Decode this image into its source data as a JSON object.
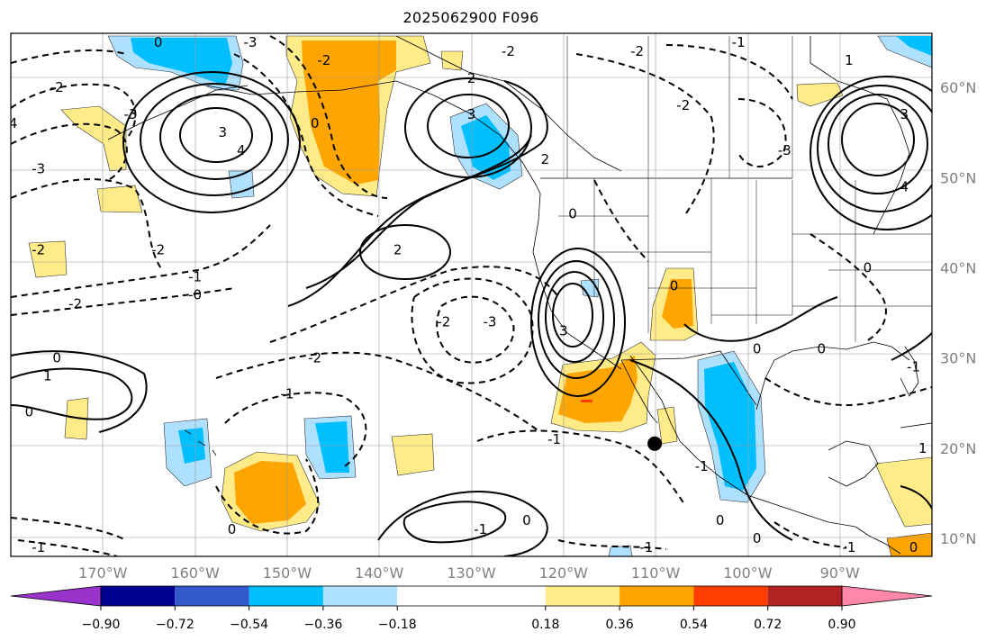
{
  "title": "2025062900 F096",
  "map": {
    "projection": "PlateCarree",
    "lon_range": [
      -180,
      -80
    ],
    "lat_range": [
      8,
      66
    ],
    "grid": true,
    "lon_ticks": [
      {
        "value": -170,
        "label": "170°W"
      },
      {
        "value": -160,
        "label": "160°W"
      },
      {
        "value": -150,
        "label": "150°W"
      },
      {
        "value": -140,
        "label": "140°W"
      },
      {
        "value": -130,
        "label": "130°W"
      },
      {
        "value": -120,
        "label": "120°W"
      },
      {
        "value": -110,
        "label": "110°W"
      },
      {
        "value": -100,
        "label": "100°W"
      },
      {
        "value": -90,
        "label": "90°W"
      }
    ],
    "lat_ticks": [
      {
        "value": 60,
        "label": "60°N"
      },
      {
        "value": 50,
        "label": "50°N"
      },
      {
        "value": 40,
        "label": "40°N"
      },
      {
        "value": 30,
        "label": "30°N"
      },
      {
        "value": 20,
        "label": "20°N"
      },
      {
        "value": 10,
        "label": "10°N"
      }
    ],
    "marker": {
      "name": "storm-center",
      "lon": -110.1,
      "lat": 20.5,
      "color": "#000000"
    }
  },
  "colorbar": {
    "extend": "both",
    "colors": [
      "#9933cc",
      "#000090",
      "#3358cc",
      "#00bfff",
      "#aee0ff",
      "#ffffff",
      "#ffeb88",
      "#ffa500",
      "#ff3d00",
      "#b22222",
      "#ff88aa"
    ],
    "boundaries": [
      -1.08,
      -0.9,
      -0.72,
      -0.54,
      -0.36,
      -0.18,
      0.18,
      0.36,
      0.54,
      0.72,
      0.9,
      1.08
    ],
    "tick_values": [
      -0.9,
      -0.72,
      -0.54,
      -0.36,
      -0.18,
      0.18,
      0.36,
      0.54,
      0.72,
      0.9
    ],
    "tick_labels": [
      "−0.90",
      "−0.72",
      "−0.54",
      "−0.36",
      "−0.18",
      "0.18",
      "0.36",
      "0.54",
      "0.72",
      "0.90"
    ]
  },
  "contour_labels": [
    {
      "text": "0",
      "lon": -164,
      "lat": 65
    },
    {
      "text": "-3",
      "lon": -154,
      "lat": 65
    },
    {
      "text": "-3",
      "lon": -167,
      "lat": 57
    },
    {
      "text": "-4",
      "lon": -180,
      "lat": 56
    },
    {
      "text": "-2",
      "lon": -175,
      "lat": 60
    },
    {
      "text": "-3",
      "lon": -177,
      "lat": 51
    },
    {
      "text": "-2",
      "lon": -177,
      "lat": 42
    },
    {
      "text": "-2",
      "lon": -173,
      "lat": 36
    },
    {
      "text": "0",
      "lon": -175,
      "lat": 30
    },
    {
      "text": "1",
      "lon": -176,
      "lat": 28
    },
    {
      "text": "3",
      "lon": -157,
      "lat": 55
    },
    {
      "text": "4",
      "lon": -155,
      "lat": 53
    },
    {
      "text": "0",
      "lon": -147,
      "lat": 56
    },
    {
      "text": "-2",
      "lon": -146,
      "lat": 63
    },
    {
      "text": "2",
      "lon": -130,
      "lat": 61
    },
    {
      "text": "3",
      "lon": -130,
      "lat": 57
    },
    {
      "text": "-2",
      "lon": -126,
      "lat": 64
    },
    {
      "text": "2",
      "lon": -122,
      "lat": 52
    },
    {
      "text": "2",
      "lon": -138,
      "lat": 42
    },
    {
      "text": "-1",
      "lon": -160,
      "lat": 39
    },
    {
      "text": "-0",
      "lon": -160,
      "lat": 37
    },
    {
      "text": "-2",
      "lon": -133,
      "lat": 34
    },
    {
      "text": "-3",
      "lon": -128,
      "lat": 34
    },
    {
      "text": "-2",
      "lon": -147,
      "lat": 30
    },
    {
      "text": "-1",
      "lon": -150,
      "lat": 26
    },
    {
      "text": "-2",
      "lon": -164,
      "lat": 42
    },
    {
      "text": "3",
      "lon": -120,
      "lat": 33
    },
    {
      "text": "0",
      "lon": -119,
      "lat": 46
    },
    {
      "text": "-2",
      "lon": -112,
      "lat": 64
    },
    {
      "text": "-2",
      "lon": -107,
      "lat": 58
    },
    {
      "text": "-1",
      "lon": -101,
      "lat": 65
    },
    {
      "text": "-3",
      "lon": -96,
      "lat": 53
    },
    {
      "text": "1",
      "lon": -89,
      "lat": 63
    },
    {
      "text": "3",
      "lon": -83,
      "lat": 57
    },
    {
      "text": "4",
      "lon": -83,
      "lat": 49
    },
    {
      "text": "0",
      "lon": -87,
      "lat": 40
    },
    {
      "text": "0",
      "lon": -108,
      "lat": 38
    },
    {
      "text": "0",
      "lon": -99,
      "lat": 31
    },
    {
      "text": "0",
      "lon": -92,
      "lat": 31
    },
    {
      "text": "-1",
      "lon": -82,
      "lat": 29
    },
    {
      "text": "-1",
      "lon": -121,
      "lat": 21
    },
    {
      "text": "-1",
      "lon": -105,
      "lat": 18
    },
    {
      "text": "-1",
      "lon": -129,
      "lat": 11
    },
    {
      "text": "0",
      "lon": -124,
      "lat": 12
    },
    {
      "text": "-1",
      "lon": -111,
      "lat": 9
    },
    {
      "text": "0",
      "lon": -103,
      "lat": 12
    },
    {
      "text": "0",
      "lon": -99,
      "lat": 10
    },
    {
      "text": "-1",
      "lon": -89,
      "lat": 9
    },
    {
      "text": "0",
      "lon": -178,
      "lat": 24
    },
    {
      "text": "0",
      "lon": -156,
      "lat": 11
    },
    {
      "text": "-1",
      "lon": -177,
      "lat": 9
    },
    {
      "text": "1",
      "lon": -81,
      "lat": 20
    },
    {
      "text": "0",
      "lon": -82,
      "lat": 9
    }
  ]
}
